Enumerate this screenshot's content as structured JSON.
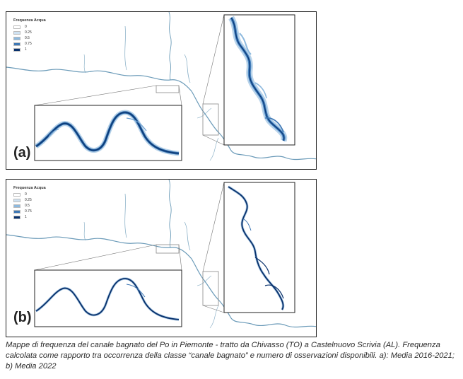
{
  "figure": {
    "panels": [
      {
        "id": "a",
        "label": "(a)",
        "legend": {
          "title": "Frequenza Acqua",
          "items": [
            {
              "label": "0",
              "color": "#ffffff"
            },
            {
              "label": "0.25",
              "color": "#cfe2f2"
            },
            {
              "label": "0.5",
              "color": "#8db9de"
            },
            {
              "label": "0.75",
              "color": "#3f78b5"
            },
            {
              "label": "1",
              "color": "#08306b"
            }
          ]
        }
      },
      {
        "id": "b",
        "label": "(b)",
        "legend": {
          "title": "Frequenza Acqua",
          "items": [
            {
              "label": "0",
              "color": "#ffffff"
            },
            {
              "label": "0.25",
              "color": "#cfe2f2"
            },
            {
              "label": "0.5",
              "color": "#8db9de"
            },
            {
              "label": "0.75",
              "color": "#3f78b5"
            },
            {
              "label": "1",
              "color": "#08306b"
            }
          ]
        }
      }
    ],
    "caption": "Mappe di frequenza del canale bagnato del Po in Piemonte - tratto da Chivasso (TO) a Castelnuovo Scrivia (AL). Frequenza calcolata come rapporto tra occorrenza della classe “canale bagnato” e numero di osservazioni disponibili. a): Media 2016-2021; b) Media 2022"
  }
}
